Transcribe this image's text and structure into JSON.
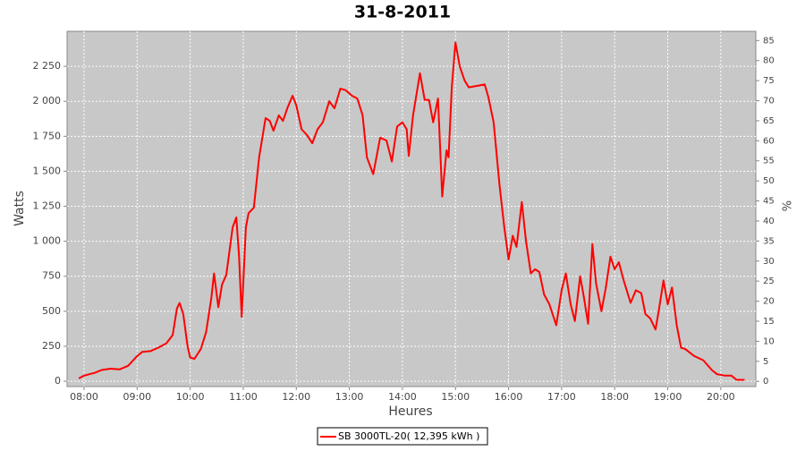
{
  "chart_data": {
    "type": "line",
    "title": "31-8-2011",
    "x_label": "Heures",
    "y_label": "Watts",
    "y2_label": "%",
    "xlim": [
      7.68,
      20.66
    ],
    "xticks": [
      {
        "value": 8,
        "label": "08:00"
      },
      {
        "value": 9,
        "label": "09:00"
      },
      {
        "value": 10,
        "label": "10:00"
      },
      {
        "value": 11,
        "label": "11:00"
      },
      {
        "value": 12,
        "label": "12:00"
      },
      {
        "value": 13,
        "label": "13:00"
      },
      {
        "value": 14,
        "label": "14:00"
      },
      {
        "value": 15,
        "label": "15:00"
      },
      {
        "value": 16,
        "label": "16:00"
      },
      {
        "value": 17,
        "label": "17:00"
      },
      {
        "value": 18,
        "label": "18:00"
      },
      {
        "value": 19,
        "label": "19:00"
      },
      {
        "value": 20,
        "label": "20:00"
      }
    ],
    "ylim": [
      -38,
      2500
    ],
    "yticks": [
      0,
      250,
      500,
      750,
      {
        "value": 1000,
        "label": "1 000"
      },
      {
        "value": 1250,
        "label": "1 250"
      },
      {
        "value": 1500,
        "label": "1 500"
      },
      {
        "value": 1750,
        "label": "1 750"
      },
      {
        "value": 2000,
        "label": "2 000"
      },
      {
        "value": 2250,
        "label": "2 250"
      }
    ],
    "y2lim": [
      -1.3,
      87.3
    ],
    "y2ticks": [
      0,
      5,
      10,
      15,
      20,
      25,
      30,
      35,
      40,
      45,
      50,
      55,
      60,
      65,
      70,
      75,
      80,
      85
    ],
    "grid": true,
    "x": [
      7.9,
      8.0,
      8.1,
      8.2,
      8.33,
      8.5,
      8.67,
      8.83,
      9.0,
      9.1,
      9.25,
      9.4,
      9.55,
      9.67,
      9.75,
      9.8,
      9.87,
      9.95,
      10.0,
      10.08,
      10.2,
      10.3,
      10.4,
      10.45,
      10.53,
      10.6,
      10.68,
      10.8,
      10.87,
      10.92,
      10.97,
      11.05,
      11.1,
      11.2,
      11.3,
      11.42,
      11.5,
      11.57,
      11.67,
      11.75,
      11.83,
      11.93,
      12.0,
      12.1,
      12.2,
      12.3,
      12.4,
      12.5,
      12.62,
      12.72,
      12.83,
      12.93,
      13.05,
      13.15,
      13.25,
      13.33,
      13.45,
      13.58,
      13.7,
      13.8,
      13.9,
      14.0,
      14.08,
      14.12,
      14.2,
      14.33,
      14.42,
      14.5,
      14.58,
      14.67,
      14.75,
      14.83,
      14.87,
      14.93,
      15.0,
      15.08,
      15.17,
      15.25,
      15.4,
      15.55,
      15.62,
      15.72,
      15.83,
      15.92,
      16.0,
      16.08,
      16.15,
      16.25,
      16.33,
      16.42,
      16.5,
      16.58,
      16.67,
      16.77,
      16.9,
      17.0,
      17.08,
      17.17,
      17.25,
      17.35,
      17.42,
      17.5,
      17.58,
      17.65,
      17.75,
      17.83,
      17.92,
      18.0,
      18.08,
      18.17,
      18.3,
      18.4,
      18.5,
      18.58,
      18.67,
      18.77,
      18.83,
      18.92,
      19.0,
      19.08,
      19.17,
      19.25,
      19.33,
      19.5,
      19.67,
      19.83,
      19.93,
      20.08,
      20.2,
      20.3,
      20.45
    ],
    "series": [
      {
        "name": "SB 3000TL-20( 12,395 kWh )",
        "color": "#ff0000",
        "values": [
          20,
          40,
          50,
          60,
          80,
          90,
          85,
          110,
          180,
          210,
          215,
          240,
          270,
          330,
          520,
          560,
          480,
          250,
          170,
          160,
          230,
          350,
          600,
          770,
          530,
          690,
          760,
          1100,
          1170,
          900,
          460,
          1100,
          1200,
          1240,
          1600,
          1880,
          1860,
          1790,
          1900,
          1860,
          1950,
          2040,
          1970,
          1800,
          1760,
          1700,
          1800,
          1850,
          2000,
          1950,
          2090,
          2080,
          2040,
          2020,
          1900,
          1600,
          1480,
          1740,
          1720,
          1570,
          1820,
          1850,
          1800,
          1610,
          1900,
          2200,
          2010,
          2010,
          1850,
          2020,
          1320,
          1650,
          1600,
          2100,
          2420,
          2250,
          2150,
          2100,
          2110,
          2120,
          2030,
          1850,
          1400,
          1100,
          870,
          1040,
          960,
          1280,
          1000,
          770,
          800,
          780,
          620,
          550,
          400,
          650,
          770,
          550,
          430,
          750,
          600,
          410,
          980,
          700,
          500,
          660,
          890,
          800,
          850,
          720,
          560,
          650,
          630,
          480,
          450,
          370,
          500,
          720,
          550,
          670,
          400,
          240,
          230,
          180,
          150,
          80,
          50,
          40,
          40,
          10,
          10
        ]
      }
    ]
  }
}
